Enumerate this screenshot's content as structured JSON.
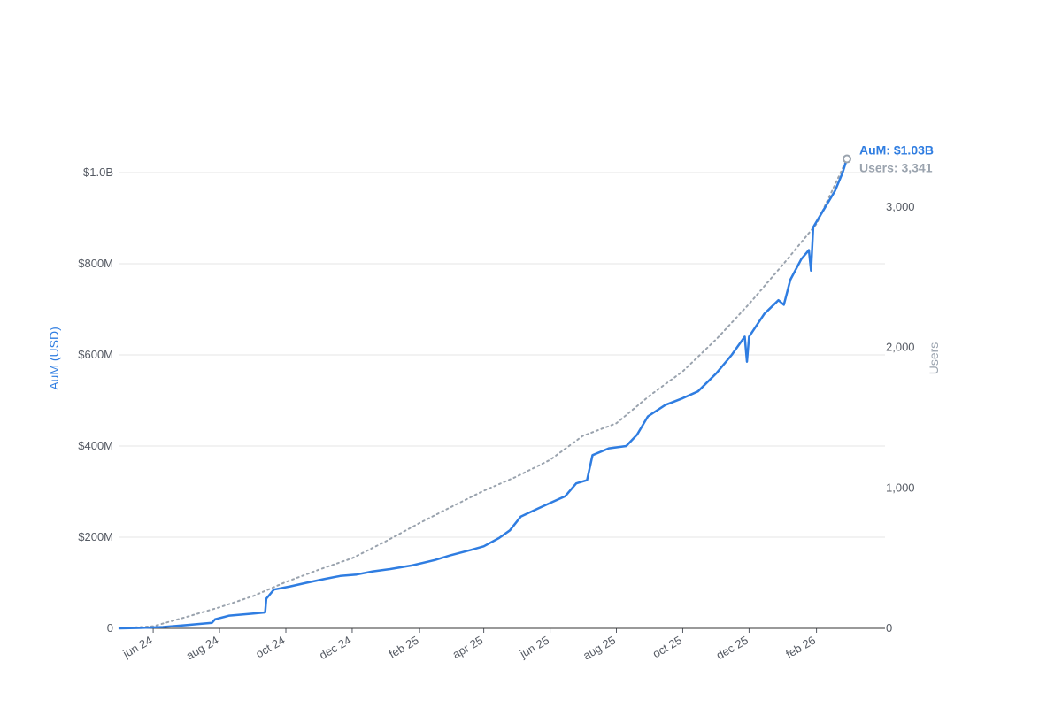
{
  "chart_data": {
    "type": "line",
    "title": "",
    "xlabel": "",
    "ylabel": "AuM (USD)",
    "y2label": "Users",
    "x_tick_labels": [
      "jun 24",
      "aug 24",
      "oct 24",
      "dec 24",
      "feb 25",
      "apr 25",
      "jun 25",
      "aug 25",
      "oct 25",
      "dec 25",
      "feb 26"
    ],
    "x_tick_dates": [
      "2024-06-01",
      "2024-08-01",
      "2024-10-01",
      "2024-12-01",
      "2025-02-01",
      "2025-04-01",
      "2025-06-01",
      "2025-08-01",
      "2025-10-01",
      "2025-12-01",
      "2026-02-01"
    ],
    "xlim": [
      "2024-05-01",
      "2026-04-05"
    ],
    "y_tick_labels": [
      "0",
      "$200M",
      "$400M",
      "$600M",
      "$800M",
      "$1.0B"
    ],
    "y_tick_values": [
      0,
      200000000,
      400000000,
      600000000,
      800000000,
      1000000000
    ],
    "ylim": [
      0,
      1000000000
    ],
    "y2_tick_labels": [
      "0",
      "1,000",
      "2,000",
      "3,000"
    ],
    "y2_tick_values": [
      0,
      1000,
      2000,
      3000
    ],
    "y2lim": [
      0,
      3000
    ],
    "grid": true,
    "series": [
      {
        "name": "AuM",
        "axis": "left",
        "color": "#2f7de1",
        "style": "solid",
        "end_label": "AuM: $1.03B",
        "points": [
          [
            "2024-05-01",
            0
          ],
          [
            "2024-05-20",
            1000000
          ],
          [
            "2024-06-10",
            3000000
          ],
          [
            "2024-07-01",
            7000000
          ],
          [
            "2024-07-25",
            12000000
          ],
          [
            "2024-07-28",
            20000000
          ],
          [
            "2024-08-10",
            28000000
          ],
          [
            "2024-08-30",
            32000000
          ],
          [
            "2024-09-12",
            35000000
          ],
          [
            "2024-09-13",
            65000000
          ],
          [
            "2024-09-20",
            85000000
          ],
          [
            "2024-10-05",
            92000000
          ],
          [
            "2024-10-20",
            100000000
          ],
          [
            "2024-11-05",
            108000000
          ],
          [
            "2024-11-20",
            115000000
          ],
          [
            "2024-12-05",
            118000000
          ],
          [
            "2024-12-20",
            125000000
          ],
          [
            "2025-01-05",
            130000000
          ],
          [
            "2025-01-25",
            138000000
          ],
          [
            "2025-02-15",
            150000000
          ],
          [
            "2025-03-01",
            160000000
          ],
          [
            "2025-03-20",
            172000000
          ],
          [
            "2025-04-01",
            180000000
          ],
          [
            "2025-04-15",
            198000000
          ],
          [
            "2025-04-25",
            215000000
          ],
          [
            "2025-05-05",
            245000000
          ],
          [
            "2025-05-20",
            262000000
          ],
          [
            "2025-06-01",
            275000000
          ],
          [
            "2025-06-15",
            290000000
          ],
          [
            "2025-06-25",
            318000000
          ],
          [
            "2025-07-05",
            325000000
          ],
          [
            "2025-07-10",
            380000000
          ],
          [
            "2025-07-25",
            395000000
          ],
          [
            "2025-08-10",
            400000000
          ],
          [
            "2025-08-20",
            425000000
          ],
          [
            "2025-08-30",
            465000000
          ],
          [
            "2025-09-15",
            490000000
          ],
          [
            "2025-10-01",
            505000000
          ],
          [
            "2025-10-15",
            520000000
          ],
          [
            "2025-11-01",
            560000000
          ],
          [
            "2025-11-15",
            600000000
          ],
          [
            "2025-11-27",
            640000000
          ],
          [
            "2025-11-29",
            585000000
          ],
          [
            "2025-12-01",
            640000000
          ],
          [
            "2025-12-15",
            690000000
          ],
          [
            "2025-12-28",
            720000000
          ],
          [
            "2026-01-02",
            710000000
          ],
          [
            "2026-01-08",
            765000000
          ],
          [
            "2026-01-18",
            810000000
          ],
          [
            "2026-01-25",
            830000000
          ],
          [
            "2026-01-27",
            785000000
          ],
          [
            "2026-01-29",
            880000000
          ],
          [
            "2026-02-08",
            920000000
          ],
          [
            "2026-02-18",
            960000000
          ],
          [
            "2026-02-25",
            1000000000
          ],
          [
            "2026-03-01",
            1030000000
          ]
        ]
      },
      {
        "name": "Users",
        "axis": "right",
        "color": "#9aa3ae",
        "style": "dotted",
        "end_label": "Users: 3,341",
        "points": [
          [
            "2024-05-01",
            0
          ],
          [
            "2024-06-01",
            15
          ],
          [
            "2024-07-01",
            80
          ],
          [
            "2024-08-01",
            150
          ],
          [
            "2024-09-01",
            230
          ],
          [
            "2024-10-01",
            330
          ],
          [
            "2024-11-01",
            420
          ],
          [
            "2024-12-01",
            500
          ],
          [
            "2025-01-01",
            620
          ],
          [
            "2025-02-01",
            750
          ],
          [
            "2025-03-01",
            860
          ],
          [
            "2025-04-01",
            980
          ],
          [
            "2025-05-01",
            1080
          ],
          [
            "2025-06-01",
            1200
          ],
          [
            "2025-07-01",
            1370
          ],
          [
            "2025-08-01",
            1460
          ],
          [
            "2025-09-01",
            1660
          ],
          [
            "2025-10-01",
            1830
          ],
          [
            "2025-11-01",
            2060
          ],
          [
            "2025-12-01",
            2310
          ],
          [
            "2026-01-01",
            2590
          ],
          [
            "2026-02-01",
            2880
          ],
          [
            "2026-03-01",
            3341
          ]
        ]
      }
    ]
  }
}
